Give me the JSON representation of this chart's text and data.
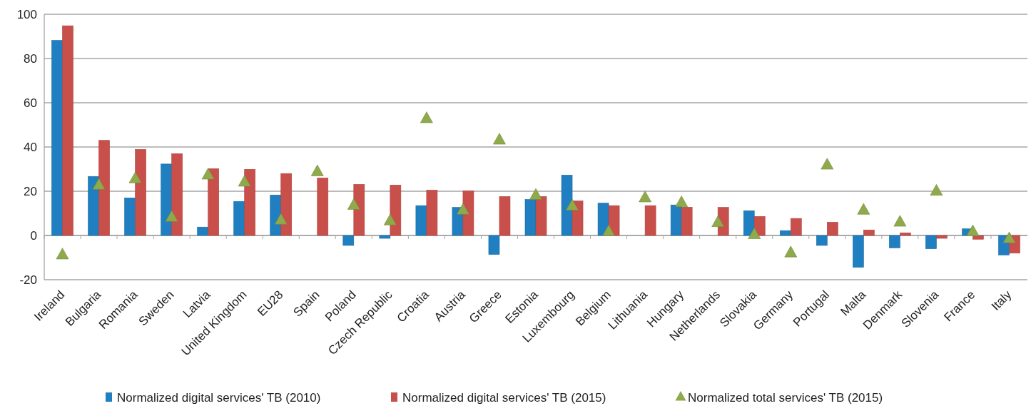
{
  "chart_data": {
    "type": "bar",
    "categories": [
      "Ireland",
      "Bulgaria",
      "Romania",
      "Sweden",
      "Latvia",
      "United Kingdom",
      "EU28",
      "Spain",
      "Poland",
      "Czech Republic",
      "Croatia",
      "Austria",
      "Greece",
      "Estonia",
      "Luxembourg",
      "Belgium",
      "Lithuania",
      "Hungary",
      "Netherlands",
      "Slovakia",
      "Germany",
      "Portugal",
      "Malta",
      "Denmark",
      "Slovenia",
      "France",
      "Italy"
    ],
    "series": [
      {
        "name": "Normalized digital services' TB (2010)",
        "color": "#1f7fc1",
        "values": [
          88.2,
          26.7,
          17,
          32.3,
          3.8,
          15.4,
          18.3,
          null,
          -4.5,
          -1.3,
          13.5,
          12.7,
          -8.6,
          16.3,
          27.3,
          14.6,
          0,
          13.8,
          null,
          11.2,
          2.2,
          -4.5,
          -14.4,
          -5.6,
          -6,
          3,
          -8.8
        ]
      },
      {
        "name": "Normalized digital services' TB (2015)",
        "color": "#c9504a",
        "values": [
          94.8,
          43,
          38.9,
          37,
          30.2,
          29.9,
          28,
          26,
          23.1,
          22.8,
          20.5,
          20.2,
          17.6,
          17.6,
          15.6,
          13.5,
          13.5,
          12.8,
          12.7,
          8.6,
          7.7,
          6,
          2.5,
          1.2,
          -1.3,
          -1.7,
          -8
        ]
      },
      {
        "name": "Normalized total services' TB (2015)",
        "type": "scatter",
        "marker": "triangle",
        "color": "#8faa4a",
        "values": [
          -8.6,
          22.9,
          25.8,
          8.4,
          27.5,
          24.3,
          7.1,
          29,
          13.8,
          6.8,
          53,
          11.6,
          43.3,
          18.3,
          13.5,
          1.9,
          17.2,
          15,
          6,
          0.6,
          -7.7,
          32,
          11.6,
          6.2,
          20.2,
          1.9,
          -1.3
        ]
      }
    ],
    "ylim": [
      -20,
      100
    ],
    "yticks": [
      -20,
      0,
      20,
      40,
      60,
      80,
      100
    ],
    "grid": "y",
    "legend": "bottom"
  }
}
